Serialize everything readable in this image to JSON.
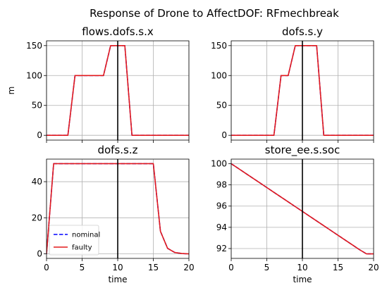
{
  "figure": {
    "suptitle": "Response of Drone to AffectDOF: RFmechbreak"
  },
  "legend": {
    "nominal": "nominal",
    "faulty": "faulty"
  },
  "chart_data": [
    {
      "type": "line",
      "title": "flows.dofs.s.x",
      "xlabel": "",
      "ylabel": "m",
      "xlim": [
        0,
        20
      ],
      "ylim": [
        -8,
        158
      ],
      "xticks": [
        0,
        5,
        10,
        15,
        20
      ],
      "xtick_labels_visible": false,
      "yticks": [
        0,
        50,
        100,
        150
      ],
      "vline_x": 10,
      "grid": true,
      "series": [
        {
          "name": "nominal",
          "color": "#0000ff",
          "dash": "dashed",
          "x": [
            0,
            1,
            2,
            3,
            4,
            5,
            6,
            7,
            8,
            9,
            10,
            11,
            12,
            13,
            14,
            15,
            16,
            17,
            18,
            19,
            20
          ],
          "y": [
            0,
            0,
            0,
            0,
            100,
            100,
            100,
            100,
            100,
            150,
            150,
            150,
            0,
            0,
            0,
            0,
            0,
            0,
            0,
            0,
            0
          ]
        },
        {
          "name": "faulty",
          "color": "#e31a1c",
          "dash": "solid",
          "x": [
            0,
            1,
            2,
            3,
            4,
            5,
            6,
            7,
            8,
            9,
            10,
            11,
            12,
            13,
            14,
            15,
            16,
            17,
            18,
            19,
            20
          ],
          "y": [
            0,
            0,
            0,
            0,
            100,
            100,
            100,
            100,
            100,
            150,
            150,
            150,
            0,
            0,
            0,
            0,
            0,
            0,
            0,
            0,
            0
          ]
        }
      ]
    },
    {
      "type": "line",
      "title": "dofs.s.y",
      "xlabel": "",
      "ylabel": "",
      "xlim": [
        0,
        20
      ],
      "ylim": [
        -8,
        158
      ],
      "xticks": [
        0,
        5,
        10,
        15,
        20
      ],
      "xtick_labels_visible": false,
      "yticks": [
        0,
        50,
        100,
        150
      ],
      "vline_x": 10,
      "grid": true,
      "series": [
        {
          "name": "nominal",
          "color": "#0000ff",
          "dash": "dashed",
          "x": [
            0,
            1,
            2,
            3,
            4,
            5,
            6,
            7,
            8,
            9,
            10,
            11,
            12,
            13,
            14,
            15,
            16,
            17,
            18,
            19,
            20
          ],
          "y": [
            0,
            0,
            0,
            0,
            0,
            0,
            0,
            100,
            100,
            150,
            150,
            150,
            150,
            0,
            0,
            0,
            0,
            0,
            0,
            0,
            0
          ]
        },
        {
          "name": "faulty",
          "color": "#e31a1c",
          "dash": "solid",
          "x": [
            0,
            1,
            2,
            3,
            4,
            5,
            6,
            7,
            8,
            9,
            10,
            11,
            12,
            13,
            14,
            15,
            16,
            17,
            18,
            19,
            20
          ],
          "y": [
            0,
            0,
            0,
            0,
            0,
            0,
            0,
            100,
            100,
            150,
            150,
            150,
            150,
            0,
            0,
            0,
            0,
            0,
            0,
            0,
            0
          ]
        }
      ]
    },
    {
      "type": "line",
      "title": "dofs.s.z",
      "xlabel": "time",
      "ylabel": "",
      "xlim": [
        0,
        20
      ],
      "ylim": [
        -2.5,
        52.5
      ],
      "xticks": [
        0,
        5,
        10,
        15,
        20
      ],
      "xtick_labels_visible": true,
      "yticks": [
        0,
        20,
        40
      ],
      "vline_x": 10,
      "grid": true,
      "legend": "lower-left",
      "series": [
        {
          "name": "nominal",
          "color": "#0000ff",
          "dash": "dashed",
          "x": [
            0,
            1,
            2,
            3,
            4,
            5,
            6,
            7,
            8,
            9,
            10,
            11,
            12,
            13,
            14,
            15,
            16,
            17,
            18,
            19,
            20
          ],
          "y": [
            0,
            50,
            50,
            50,
            50,
            50,
            50,
            50,
            50,
            50,
            50,
            50,
            50,
            50,
            50,
            50,
            12.5,
            3.1,
            0.8,
            0.2,
            0
          ]
        },
        {
          "name": "faulty",
          "color": "#e31a1c",
          "dash": "solid",
          "x": [
            0,
            1,
            2,
            3,
            4,
            5,
            6,
            7,
            8,
            9,
            10,
            11,
            12,
            13,
            14,
            15,
            16,
            17,
            18,
            19,
            20
          ],
          "y": [
            0,
            50,
            50,
            50,
            50,
            50,
            50,
            50,
            50,
            50,
            50,
            50,
            50,
            50,
            50,
            50,
            12.5,
            3.1,
            0.8,
            0.2,
            0
          ]
        }
      ]
    },
    {
      "type": "line",
      "title": "store_ee.s.soc",
      "xlabel": "time",
      "ylabel": "",
      "xlim": [
        0,
        20
      ],
      "ylim": [
        91.07,
        100.43
      ],
      "xticks": [
        0,
        5,
        10,
        15,
        20
      ],
      "xtick_labels_visible": true,
      "yticks": [
        92,
        94,
        96,
        98,
        100
      ],
      "vline_x": 10,
      "grid": true,
      "series": [
        {
          "name": "nominal",
          "color": "#0000ff",
          "dash": "dashed",
          "x": [
            0,
            1,
            2,
            3,
            4,
            5,
            6,
            7,
            8,
            9,
            10,
            11,
            12,
            13,
            14,
            15,
            16,
            17,
            18,
            19,
            20
          ],
          "y": [
            100,
            99.55,
            99.1,
            98.65,
            98.2,
            97.75,
            97.3,
            96.85,
            96.4,
            95.95,
            95.5,
            95.05,
            94.6,
            94.15,
            93.7,
            93.25,
            92.8,
            92.35,
            91.9,
            91.5,
            91.5
          ]
        },
        {
          "name": "faulty",
          "color": "#e31a1c",
          "dash": "solid",
          "x": [
            0,
            1,
            2,
            3,
            4,
            5,
            6,
            7,
            8,
            9,
            10,
            11,
            12,
            13,
            14,
            15,
            16,
            17,
            18,
            19,
            20
          ],
          "y": [
            100,
            99.55,
            99.1,
            98.65,
            98.2,
            97.75,
            97.3,
            96.85,
            96.4,
            95.95,
            95.5,
            95.05,
            94.6,
            94.15,
            93.7,
            93.25,
            92.8,
            92.35,
            91.9,
            91.5,
            91.5
          ]
        }
      ]
    }
  ]
}
